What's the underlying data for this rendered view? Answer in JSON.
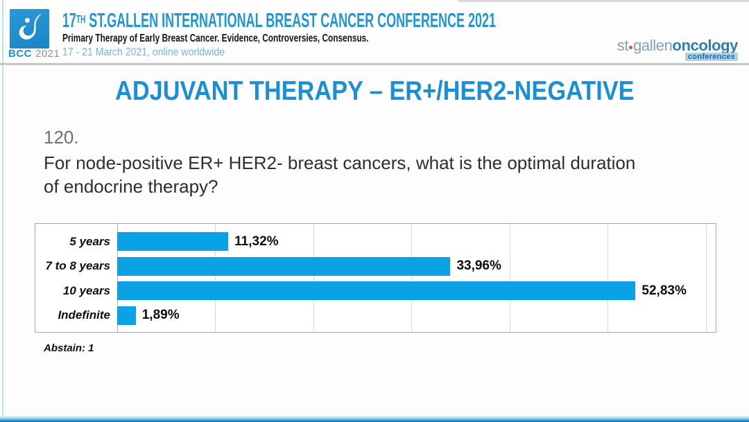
{
  "header": {
    "logo_badge": {
      "acronym": "BCC",
      "year": "2021"
    },
    "conference_title": {
      "number": "17",
      "ordinal": "TH",
      "rest": " ST.GALLEN INTERNATIONAL BREAST CANCER CONFERENCE 2021"
    },
    "subtitle": "Primary Therapy of Early Breast Cancer. Evidence, Controversies, Consensus.",
    "date_line": "17 - 21 March 2021, online worldwide",
    "org_logo": {
      "part_light": "st",
      "part_light2": "gallen",
      "part_dark": "oncology",
      "badge": "conferences"
    }
  },
  "slide": {
    "title": "ADJUVANT THERAPY – ER+/HER2-NEGATIVE",
    "question_number": "120.",
    "question_text": "For node-positive ER+ HER2- breast cancers, what is the optimal duration of endocrine therapy?",
    "abstain_label": "Abstain: 1"
  },
  "chart_data": {
    "type": "bar",
    "orientation": "horizontal",
    "title": "",
    "categories": [
      "5 years",
      "7 to 8 years",
      "10 years",
      "Indefinite"
    ],
    "values": [
      11.32,
      33.96,
      52.83,
      1.89
    ],
    "value_labels": [
      "11,32%",
      "33,96%",
      "52,83%",
      "1,89%"
    ],
    "xlim": [
      0,
      61
    ],
    "gridline_interval": 10,
    "grid": true,
    "legend": false,
    "bar_color": "#0aa1e6",
    "note": "Abstain: 1"
  },
  "colors": {
    "accent_blue": "#1b8fd5",
    "bar_blue": "#0aa1e6",
    "date_blue": "#74b5d6",
    "logo_blue": "#1d8ed0"
  }
}
